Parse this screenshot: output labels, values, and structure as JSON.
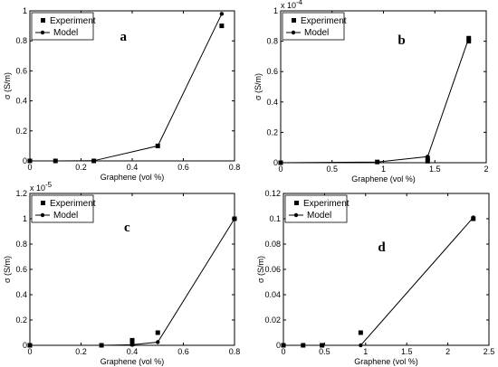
{
  "chart_data": [
    {
      "type": "line",
      "letter": "a",
      "xlabel": "Graphene (vol %)",
      "ylabel": "σ (S/m)",
      "exponent": "",
      "xlim": [
        0,
        0.8
      ],
      "ylim": [
        0,
        1
      ],
      "xticks": [
        0,
        0.2,
        0.4,
        0.6,
        0.8
      ],
      "xtick_labels": [
        "0",
        "0.2",
        "0.4",
        "0.6",
        "0.8"
      ],
      "yticks": [
        0,
        0.2,
        0.4,
        0.6,
        0.8,
        1
      ],
      "ytick_labels": [
        "0",
        "0.2",
        "0.4",
        "0.6",
        "0.8",
        "1"
      ],
      "legend_position": "top-left",
      "series": [
        {
          "name": "Experiment",
          "marker": "square",
          "x": [
            0,
            0.1,
            0.25,
            0.5,
            0.75
          ],
          "y": [
            0,
            0,
            0,
            0.1,
            0.9
          ]
        },
        {
          "name": "Model",
          "marker": "circle-line",
          "x": [
            0,
            0.1,
            0.25,
            0.5,
            0.75
          ],
          "y": [
            0,
            0,
            0.001,
            0.1,
            0.98
          ]
        }
      ]
    },
    {
      "type": "line",
      "letter": "b",
      "xlabel": "Graphene (vol %)",
      "ylabel": "σ (S/m)",
      "exponent": "x 10",
      "exponent_power": "-4",
      "xlim": [
        0,
        2
      ],
      "ylim": [
        0,
        1
      ],
      "xticks": [
        0,
        0.5,
        1,
        1.5,
        2
      ],
      "xtick_labels": [
        "0",
        "0.5",
        "1",
        "1.5",
        "2"
      ],
      "yticks": [
        0,
        0.2,
        0.4,
        0.6,
        0.8,
        1
      ],
      "ytick_labels": [
        "0",
        "0.2",
        "0.4",
        "0.6",
        "0.8",
        "1"
      ],
      "legend_position": "top-left",
      "series": [
        {
          "name": "Experiment",
          "marker": "square",
          "x": [
            0,
            0.94,
            1.43,
            1.43,
            1.83,
            1.83
          ],
          "y": [
            0,
            0.005,
            0.01,
            0.03,
            0.8,
            0.82
          ]
        },
        {
          "name": "Model",
          "marker": "circle-line",
          "x": [
            0,
            0.94,
            1.43,
            1.83
          ],
          "y": [
            0,
            0.005,
            0.04,
            0.82
          ]
        }
      ]
    },
    {
      "type": "line",
      "letter": "c",
      "xlabel": "Graphene (vol %)",
      "ylabel": "σ (S/m)",
      "exponent": "x 10",
      "exponent_power": "-5",
      "xlim": [
        0,
        0.8
      ],
      "ylim": [
        0,
        1.2
      ],
      "xticks": [
        0,
        0.2,
        0.4,
        0.6,
        0.8
      ],
      "xtick_labels": [
        "0",
        "0.2",
        "0.4",
        "0.6",
        "0.8"
      ],
      "yticks": [
        0,
        0.2,
        0.4,
        0.6,
        0.8,
        1,
        1.2
      ],
      "ytick_labels": [
        "0",
        "0.2",
        "0.4",
        "0.6",
        "0.8",
        "1",
        "1.2"
      ],
      "legend_position": "top-left",
      "series": [
        {
          "name": "Experiment",
          "marker": "square",
          "x": [
            0,
            0.28,
            0.4,
            0.4,
            0.5,
            0.8
          ],
          "y": [
            0,
            0,
            0.01,
            0.04,
            0.1,
            1.0
          ]
        },
        {
          "name": "Model",
          "marker": "circle-line",
          "x": [
            0,
            0.28,
            0.4,
            0.5,
            0.8
          ],
          "y": [
            0,
            0,
            0.004,
            0.025,
            1.0
          ]
        }
      ]
    },
    {
      "type": "line",
      "letter": "d",
      "xlabel": "Graphene (vol %)",
      "ylabel": "σ (S/m)",
      "exponent": "",
      "xlim": [
        0,
        2.5
      ],
      "ylim": [
        0,
        0.12
      ],
      "xticks": [
        0,
        0.5,
        1,
        1.5,
        2,
        2.5
      ],
      "xtick_labels": [
        "0",
        "0.5",
        "1",
        "1.5",
        "2",
        "2.5"
      ],
      "yticks": [
        0,
        0.02,
        0.04,
        0.06,
        0.08,
        0.1,
        0.12
      ],
      "ytick_labels": [
        "0",
        "0.02",
        "0.04",
        "0.06",
        "0.08",
        "0.1",
        "0.12"
      ],
      "legend_position": "top-left",
      "series": [
        {
          "name": "Experiment",
          "marker": "square",
          "x": [
            0,
            0.24,
            0.47,
            0.94,
            2.31
          ],
          "y": [
            0,
            0,
            0,
            0.01,
            0.1
          ]
        },
        {
          "name": "Model",
          "marker": "circle-line",
          "x": [
            0,
            0.24,
            0.47,
            0.94,
            2.31
          ],
          "y": [
            0,
            0,
            0,
            0,
            0.101
          ]
        }
      ]
    }
  ]
}
